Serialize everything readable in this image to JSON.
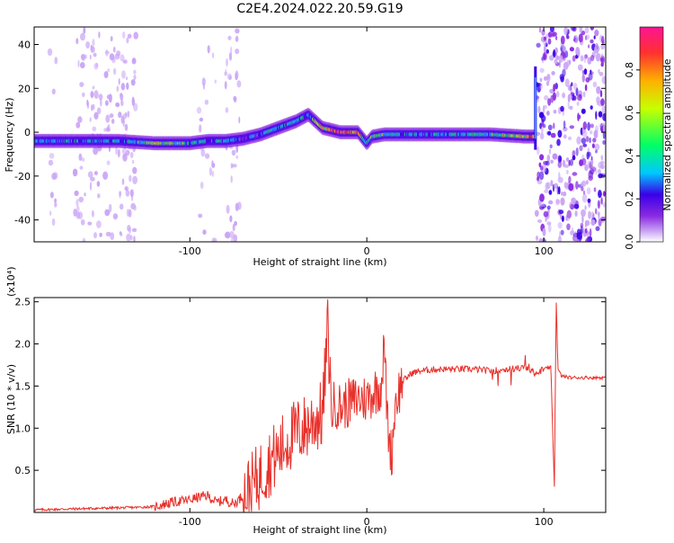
{
  "title": "C2E4.2024.022.20.59.G19",
  "chart_data": [
    {
      "type": "heatmap",
      "xlabel": "Height of straight line (km)",
      "ylabel": "Frequency (Hz)",
      "xlim": [
        -188,
        135
      ],
      "ylim": [
        -50,
        48
      ],
      "xticks": [
        -100,
        0,
        100
      ],
      "yticks": [
        -40,
        -20,
        0,
        20,
        40
      ],
      "grid": false,
      "colorbar": {
        "label": "Normalized spectral amplitude",
        "range": [
          0,
          1
        ],
        "ticks": [
          0.0,
          0.2,
          0.4,
          0.6,
          0.8
        ],
        "colormap": [
          "#ffffff",
          "#c9a4f5",
          "#8a2be2",
          "#3a00e8",
          "#00c8ff",
          "#00ff66",
          "#c8ff00",
          "#ffb000",
          "#ff3030",
          "#ff1493"
        ]
      },
      "ridge": {
        "x": [
          -188,
          -160,
          -140,
          -120,
          -100,
          -90,
          -80,
          -70,
          -60,
          -50,
          -40,
          -33,
          -25,
          -15,
          -5,
          0,
          3,
          10,
          30,
          50,
          70,
          90,
          95
        ],
        "y": [
          -4,
          -4,
          -4,
          -5,
          -5,
          -4,
          -4,
          -3,
          -1,
          2,
          5,
          8,
          2,
          0,
          0,
          -5,
          -2,
          -1,
          -1,
          -1,
          -1,
          -2,
          -2
        ],
        "level": [
          0.4,
          0.45,
          0.4,
          0.6,
          0.5,
          0.4,
          0.45,
          0.3,
          0.4,
          0.45,
          0.5,
          0.4,
          0.7,
          0.9,
          0.8,
          0.5,
          0.6,
          0.5,
          0.4,
          0.45,
          0.5,
          0.7,
          0.8
        ]
      }
    },
    {
      "type": "line",
      "xlabel": "Height of straight line (km)",
      "ylabel": "SNR (10 * v/v)",
      "yscale_label": "(x10⁴)",
      "xlim": [
        -188,
        135
      ],
      "ylim": [
        0,
        2.55
      ],
      "xticks": [
        -100,
        0,
        100
      ],
      "yticks": [
        0.5,
        1.0,
        1.5,
        2.0,
        2.5
      ],
      "grid": false,
      "color": "#e8302a",
      "series": [
        {
          "x": [
            -188,
            -170,
            -150,
            -130,
            -120,
            -110,
            -100,
            -95,
            -90,
            -85,
            -80,
            -75,
            -70,
            -65,
            -60,
            -55,
            -50,
            -45,
            -40,
            -35,
            -30,
            -25,
            -22,
            -20,
            -18,
            -15,
            -10,
            -5,
            0,
            5,
            8,
            10,
            11,
            12,
            14,
            16,
            20,
            25,
            30,
            40,
            50,
            60,
            70,
            80,
            90,
            95,
            100,
            104,
            106,
            107,
            108,
            110,
            115,
            120,
            125,
            130,
            135
          ],
          "y": [
            0.03,
            0.04,
            0.05,
            0.06,
            0.07,
            0.12,
            0.15,
            0.18,
            0.2,
            0.12,
            0.15,
            0.1,
            0.2,
            0.3,
            0.45,
            0.6,
            0.7,
            0.85,
            0.95,
            1.0,
            1.1,
            1.15,
            2.2,
            1.2,
            1.3,
            1.25,
            1.3,
            1.35,
            1.35,
            1.45,
            1.5,
            2.0,
            1.4,
            1.0,
            0.65,
            1.3,
            1.55,
            1.65,
            1.68,
            1.7,
            1.7,
            1.7,
            1.68,
            1.7,
            1.72,
            1.65,
            1.7,
            1.72,
            0.3,
            2.55,
            1.7,
            1.62,
            1.6,
            1.6,
            1.6,
            1.6,
            1.6
          ]
        }
      ]
    }
  ]
}
